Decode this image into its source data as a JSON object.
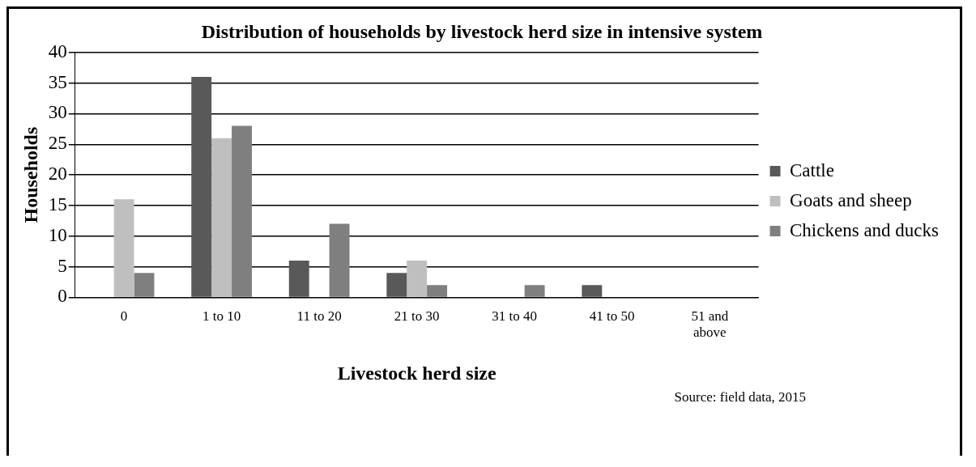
{
  "chart_data": {
    "type": "bar",
    "title": "Distribution of households by livestock herd size in intensive system",
    "xlabel": "Livestock herd size",
    "ylabel": "Households",
    "categories": [
      "0",
      "1 to 10",
      "11 to 20",
      "21 to 30",
      "31 to 40",
      "41 to 50",
      "51 and above"
    ],
    "series": [
      {
        "name": "Cattle",
        "color": "#595959",
        "values": [
          0,
          36,
          6,
          4,
          0,
          2,
          0
        ]
      },
      {
        "name": "Goats and sheep",
        "color": "#bfbfbf",
        "values": [
          16,
          26,
          0,
          6,
          0,
          0,
          0
        ]
      },
      {
        "name": "Chickens and ducks",
        "color": "#7f7f7f",
        "values": [
          4,
          28,
          12,
          2,
          2,
          0,
          0
        ]
      }
    ],
    "ylim": [
      0,
      40
    ],
    "yticks": [
      0,
      5,
      10,
      15,
      20,
      25,
      30,
      35,
      40
    ],
    "grid": "y",
    "legend": "right",
    "annotations": [
      "Source: field data, 2015"
    ]
  }
}
